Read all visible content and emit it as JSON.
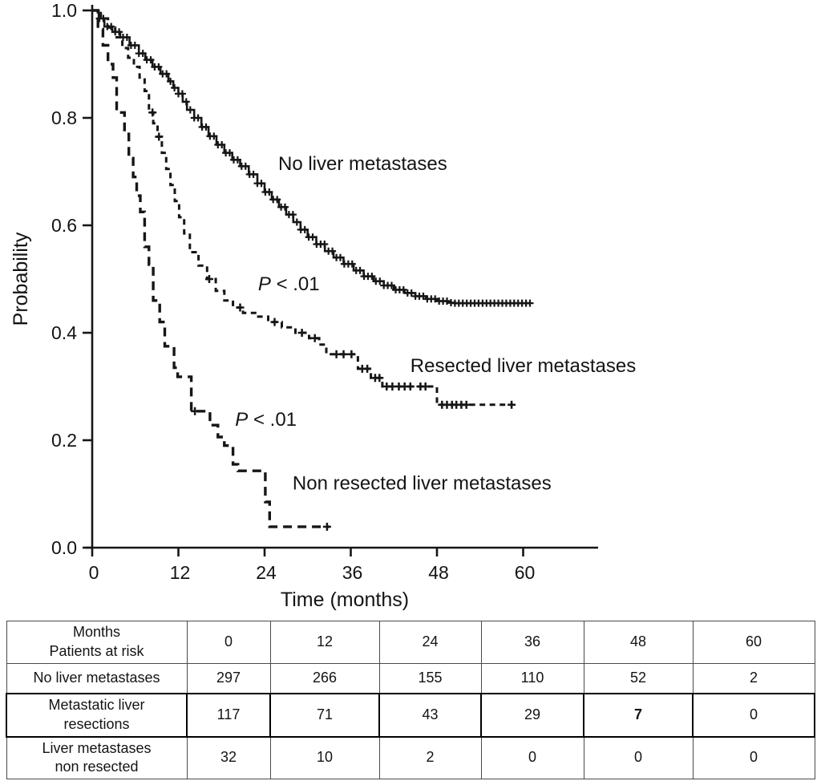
{
  "chart_data": {
    "type": "line",
    "subtype": "kaplan_meier_step",
    "title": "",
    "xlabel": "Time (months)",
    "ylabel": "Probability",
    "xlim": [
      0,
      70.4
    ],
    "ylim": [
      0.0,
      1.0
    ],
    "xticks": [
      "0",
      "12",
      "24",
      "36",
      "48",
      "60"
    ],
    "yticks": [
      "1.0",
      "0.8",
      "0.6",
      "0.4",
      "0.2",
      "0.0"
    ],
    "grid": false,
    "legend_position": "inline-labels",
    "line_color": "#161616",
    "series": [
      {
        "name": "No liver metastases",
        "line_style": "solid-dense-censor-ticks",
        "points": [
          [
            0,
            1.0
          ],
          [
            0.9,
            0.985
          ],
          [
            1.7,
            0.97
          ],
          [
            2.8,
            0.96
          ],
          [
            3.9,
            0.95
          ],
          [
            5.2,
            0.935
          ],
          [
            6.5,
            0.92
          ],
          [
            7.4,
            0.908
          ],
          [
            8.4,
            0.895
          ],
          [
            9.5,
            0.882
          ],
          [
            10.6,
            0.868
          ],
          [
            11.3,
            0.856
          ],
          [
            12,
            0.845
          ],
          [
            12.6,
            0.83
          ],
          [
            13.2,
            0.815
          ],
          [
            14.2,
            0.8
          ],
          [
            15.2,
            0.783
          ],
          [
            16.2,
            0.766
          ],
          [
            17.3,
            0.75
          ],
          [
            18.4,
            0.735
          ],
          [
            19.5,
            0.722
          ],
          [
            20.6,
            0.71
          ],
          [
            21.8,
            0.695
          ],
          [
            23,
            0.678
          ],
          [
            24,
            0.662
          ],
          [
            25,
            0.648
          ],
          [
            26,
            0.634
          ],
          [
            27,
            0.62
          ],
          [
            28,
            0.606
          ],
          [
            29,
            0.592
          ],
          [
            30,
            0.578
          ],
          [
            31.2,
            0.565
          ],
          [
            32.4,
            0.552
          ],
          [
            33.6,
            0.54
          ],
          [
            35,
            0.528
          ],
          [
            36.4,
            0.516
          ],
          [
            37.8,
            0.505
          ],
          [
            39.2,
            0.496
          ],
          [
            40.6,
            0.488
          ],
          [
            42,
            0.48
          ],
          [
            43.5,
            0.474
          ],
          [
            45,
            0.468
          ],
          [
            46.5,
            0.463
          ],
          [
            48,
            0.459
          ],
          [
            49.5,
            0.456
          ],
          [
            50.5,
            0.455
          ],
          [
            61,
            0.455
          ]
        ],
        "censor_auto": {
          "from": 1.0,
          "to": 61.0,
          "step": 0.55
        },
        "censors": [],
        "label": {
          "text": "No liver metastases",
          "x": 25.9,
          "y": 0.703
        }
      },
      {
        "name": "Resected liver metastases",
        "line_style": "dashed",
        "points": [
          [
            0,
            1.0
          ],
          [
            1.2,
            0.985
          ],
          [
            2.2,
            0.968
          ],
          [
            3.2,
            0.95
          ],
          [
            4.2,
            0.93
          ],
          [
            5,
            0.912
          ],
          [
            5.8,
            0.895
          ],
          [
            6.6,
            0.875
          ],
          [
            7.3,
            0.85
          ],
          [
            7.9,
            0.81
          ],
          [
            8.5,
            0.79
          ],
          [
            9.1,
            0.765
          ],
          [
            9.7,
            0.735
          ],
          [
            10.3,
            0.705
          ],
          [
            10.9,
            0.675
          ],
          [
            11.5,
            0.645
          ],
          [
            12.1,
            0.615
          ],
          [
            12.8,
            0.585
          ],
          [
            13.6,
            0.55
          ],
          [
            14.8,
            0.525
          ],
          [
            16,
            0.5
          ],
          [
            17.2,
            0.478
          ],
          [
            18.4,
            0.46
          ],
          [
            19.6,
            0.447
          ],
          [
            21,
            0.437
          ],
          [
            22.9,
            0.43
          ],
          [
            24.5,
            0.42
          ],
          [
            26.4,
            0.41
          ],
          [
            28.3,
            0.4
          ],
          [
            30.2,
            0.39
          ],
          [
            31.6,
            0.378
          ],
          [
            32.6,
            0.36
          ],
          [
            37,
            0.333
          ],
          [
            38.8,
            0.316
          ],
          [
            40.4,
            0.3
          ],
          [
            48,
            0.266
          ],
          [
            58.6,
            0.266
          ]
        ],
        "censor_auto": null,
        "censors": [
          8.4,
          9.3,
          16.3,
          20.6,
          25.4,
          29.2,
          31,
          34,
          35,
          36.1,
          37.6,
          38.3,
          39.4,
          40,
          41,
          41.8,
          42.7,
          43.5,
          44.3,
          45.7,
          46.4,
          48.7,
          49.4,
          50.1,
          50.7,
          51.4,
          52.1,
          58.4
        ],
        "label": {
          "text": "Resected liver metastases",
          "x": 44.3,
          "y": 0.327
        }
      },
      {
        "name": "Non resected liver metastases",
        "line_style": "long-dashed",
        "points": [
          [
            0,
            1.0
          ],
          [
            0.8,
            0.965
          ],
          [
            1.5,
            0.935
          ],
          [
            2.2,
            0.9
          ],
          [
            2.9,
            0.875
          ],
          [
            3.4,
            0.81
          ],
          [
            4.5,
            0.77
          ],
          [
            5.1,
            0.725
          ],
          [
            5.7,
            0.69
          ],
          [
            6.2,
            0.655
          ],
          [
            6.7,
            0.625
          ],
          [
            7.3,
            0.56
          ],
          [
            7.9,
            0.527
          ],
          [
            8.5,
            0.46
          ],
          [
            9.4,
            0.42
          ],
          [
            10.1,
            0.375
          ],
          [
            11.4,
            0.335
          ],
          [
            11.9,
            0.318
          ],
          [
            13.8,
            0.254
          ],
          [
            16.4,
            0.228
          ],
          [
            17.5,
            0.206
          ],
          [
            18.4,
            0.19
          ],
          [
            19.6,
            0.155
          ],
          [
            20.3,
            0.143
          ],
          [
            24.1,
            0.085
          ],
          [
            24.7,
            0.039
          ],
          [
            33,
            0.039
          ]
        ],
        "censor_auto": null,
        "censors": [
          14.3,
          32.7
        ],
        "label": {
          "text": "Non resected liver metastases",
          "x": 27.9,
          "y": 0.108
        }
      }
    ],
    "annotations": [
      {
        "prefix": "P",
        "rest": " < .01",
        "x": 23.1,
        "y": 0.479
      },
      {
        "prefix": "P",
        "rest": " < .01",
        "x": 19.9,
        "y": 0.227
      }
    ]
  },
  "risk_table": {
    "header_label_lines": [
      "Months",
      "Patients at risk"
    ],
    "time_cols": [
      "0",
      "12",
      "24",
      "36",
      "48",
      "60"
    ],
    "rows": [
      {
        "label_lines": [
          "No liver metastases"
        ],
        "values": [
          "297",
          "266",
          "155",
          "110",
          "52",
          "2"
        ],
        "bold": [],
        "heavy": false
      },
      {
        "label_lines": [
          "Metastatic liver",
          "resections"
        ],
        "values": [
          "117",
          "71",
          "43",
          "29",
          "7",
          "0"
        ],
        "bold": [
          4
        ],
        "heavy": true
      },
      {
        "label_lines": [
          "Liver metastases",
          "non resected"
        ],
        "values": [
          "32",
          "10",
          "2",
          "0",
          "0",
          "0"
        ],
        "bold": [],
        "heavy": false
      }
    ]
  }
}
